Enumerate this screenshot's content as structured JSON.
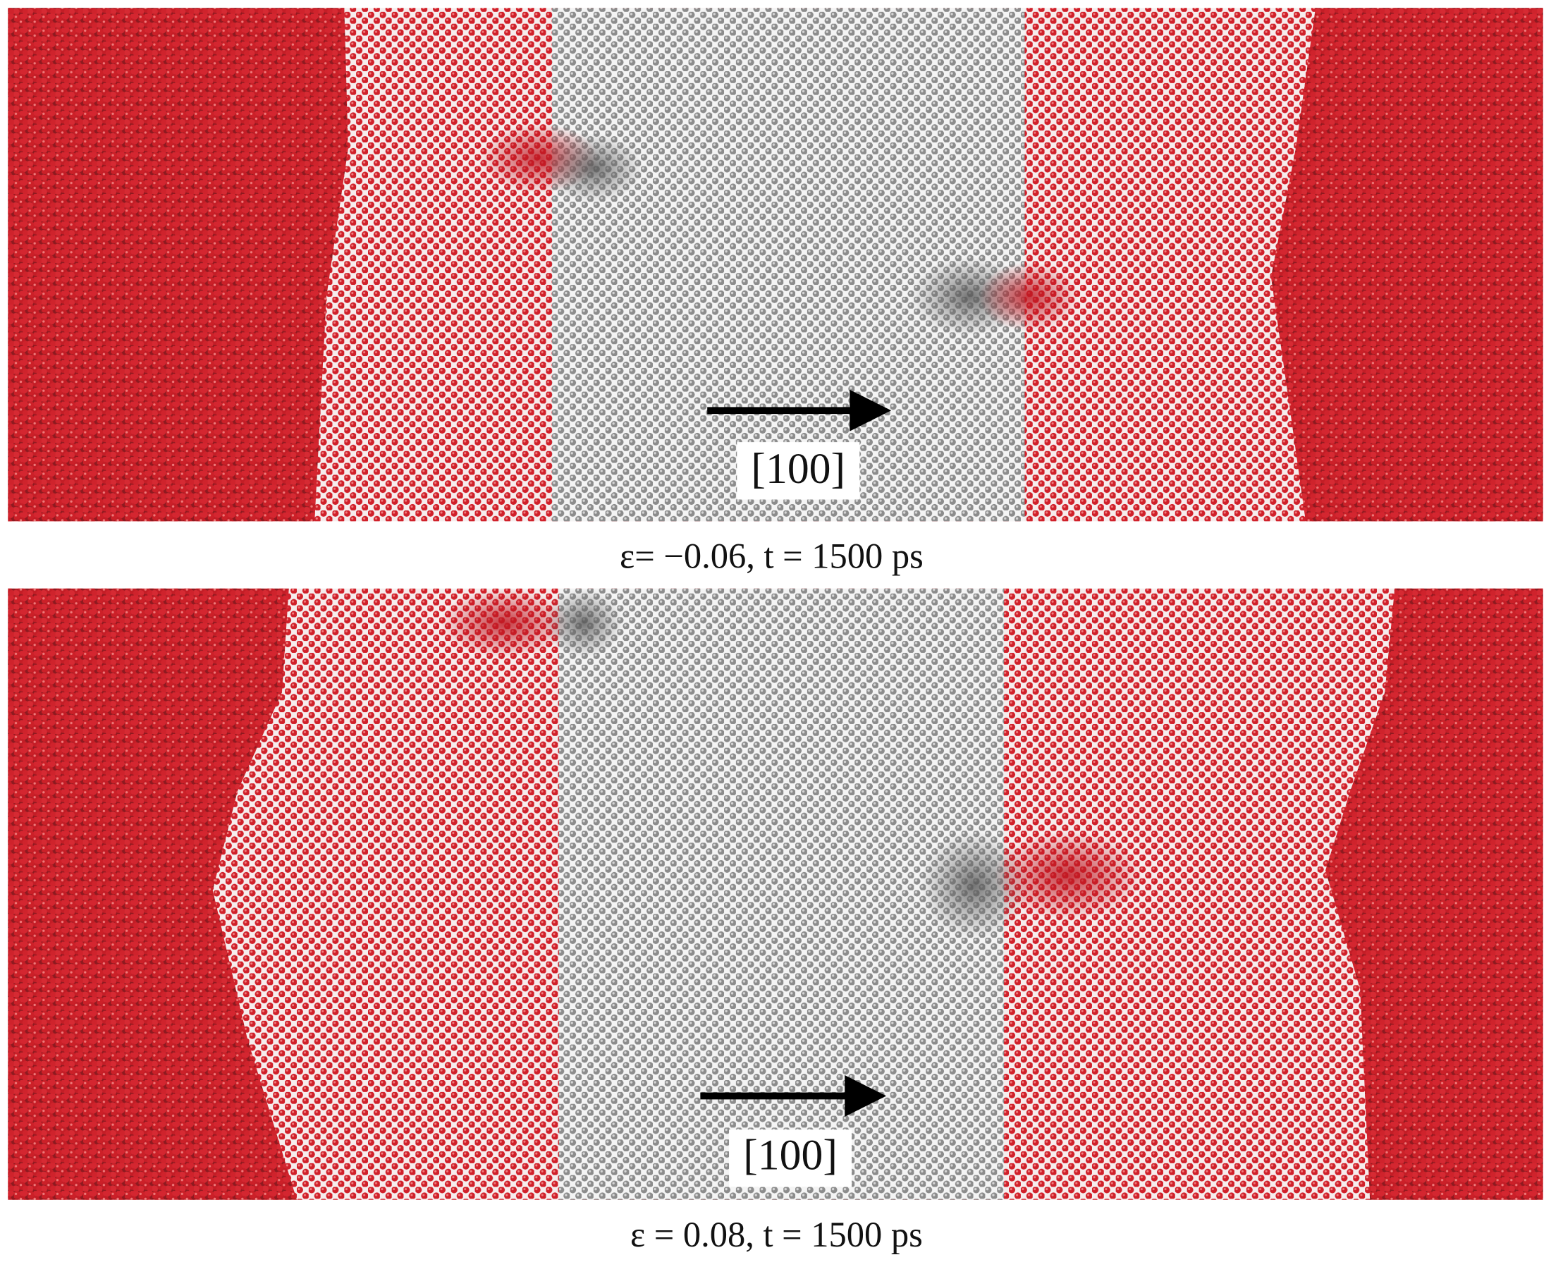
{
  "panels": [
    {
      "direction_label": "[100]",
      "caption": "ε= −0.06, t = 1500 ps"
    },
    {
      "direction_label": "[100]",
      "caption": "ε = 0.08, t = 1500 ps"
    }
  ]
}
